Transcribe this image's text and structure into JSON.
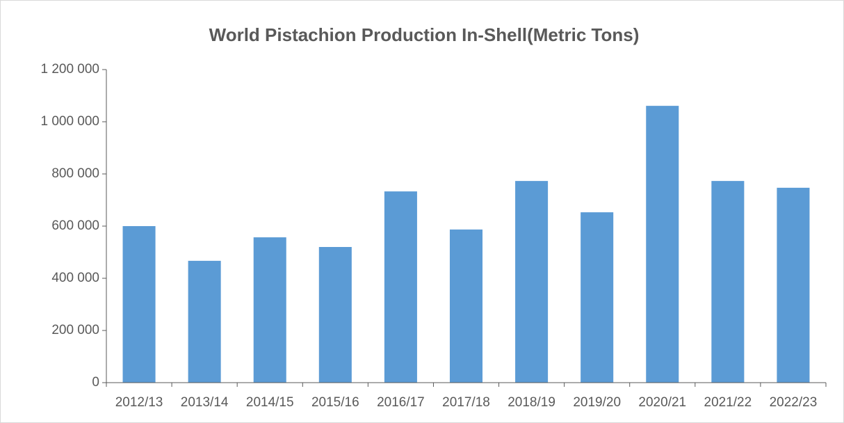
{
  "chart_data": {
    "type": "bar",
    "title": "World Pistachion Production In-Shell(Metric Tons)",
    "categories": [
      "2012/13",
      "2013/14",
      "2014/15",
      "2015/16",
      "2016/17",
      "2017/18",
      "2018/19",
      "2019/20",
      "2020/21",
      "2021/22",
      "2022/23"
    ],
    "values": [
      600000,
      467000,
      557000,
      520000,
      733000,
      587000,
      773000,
      653000,
      1061000,
      773000,
      747000
    ],
    "color": "#5b9bd5",
    "ylim": [
      0,
      1200000
    ],
    "yticks": [
      0,
      {
        "value": 200000,
        "label": "200 000"
      },
      {
        "value": 400000,
        "label": "400 000"
      },
      {
        "value": 600000,
        "label": "600 000"
      },
      {
        "value": 800000,
        "label": "800 000"
      },
      {
        "value": 1000000,
        "label": "1 000 000"
      },
      {
        "value": 1200000,
        "label": "1 200 000"
      }
    ],
    "grid": false
  }
}
